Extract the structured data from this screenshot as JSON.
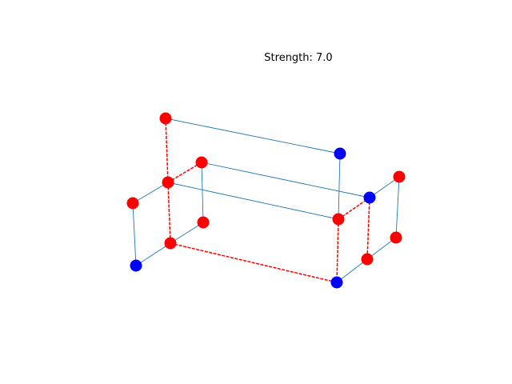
{
  "title": "Strength: 7.0",
  "colors": {
    "active_node": "#ff0000",
    "inactive_node": "#0000ff",
    "link_edge": "#1f77b4",
    "active_edge": "#ff0000"
  },
  "nodes": [
    {
      "id": "n1",
      "state": "active"
    },
    {
      "id": "n2",
      "state": "inactive"
    },
    {
      "id": "n3",
      "state": "active"
    },
    {
      "id": "n4",
      "state": "active"
    },
    {
      "id": "n5",
      "state": "active"
    },
    {
      "id": "n6",
      "state": "active"
    },
    {
      "id": "n7",
      "state": "active"
    },
    {
      "id": "n8",
      "state": "inactive"
    },
    {
      "id": "n9",
      "state": "active"
    },
    {
      "id": "n10",
      "state": "inactive"
    },
    {
      "id": "n11",
      "state": "active"
    },
    {
      "id": "n12",
      "state": "active"
    },
    {
      "id": "n13",
      "state": "inactive"
    },
    {
      "id": "n14",
      "state": "active"
    }
  ],
  "edges": [
    {
      "from": "n1",
      "to": "n2",
      "style": "link"
    },
    {
      "from": "n1",
      "to": "n4",
      "style": "active"
    },
    {
      "from": "n2",
      "to": "n7",
      "style": "link"
    },
    {
      "from": "n3",
      "to": "n4",
      "style": "active"
    },
    {
      "from": "n3",
      "to": "n8",
      "style": "link"
    },
    {
      "from": "n3",
      "to": "n6",
      "style": "link"
    },
    {
      "from": "n4",
      "to": "n5",
      "style": "link"
    },
    {
      "from": "n4",
      "to": "n7",
      "style": "link"
    },
    {
      "from": "n4",
      "to": "n9",
      "style": "active"
    },
    {
      "from": "n5",
      "to": "n10",
      "style": "link"
    },
    {
      "from": "n6",
      "to": "n9",
      "style": "link"
    },
    {
      "from": "n6",
      "to": "n12",
      "style": "active"
    },
    {
      "from": "n7",
      "to": "n12",
      "style": "active"
    },
    {
      "from": "n7",
      "to": "n14",
      "style": "active"
    },
    {
      "from": "n8",
      "to": "n9",
      "style": "link"
    },
    {
      "from": "n9",
      "to": "n14",
      "style": "active"
    },
    {
      "from": "n10",
      "to": "n9",
      "style": "link"
    },
    {
      "from": "n11",
      "to": "n12",
      "style": "link"
    },
    {
      "from": "n11",
      "to": "n13",
      "style": "link"
    },
    {
      "from": "n12",
      "to": "n13",
      "style": "active"
    },
    {
      "from": "n13",
      "to": "n14",
      "style": "link"
    }
  ]
}
